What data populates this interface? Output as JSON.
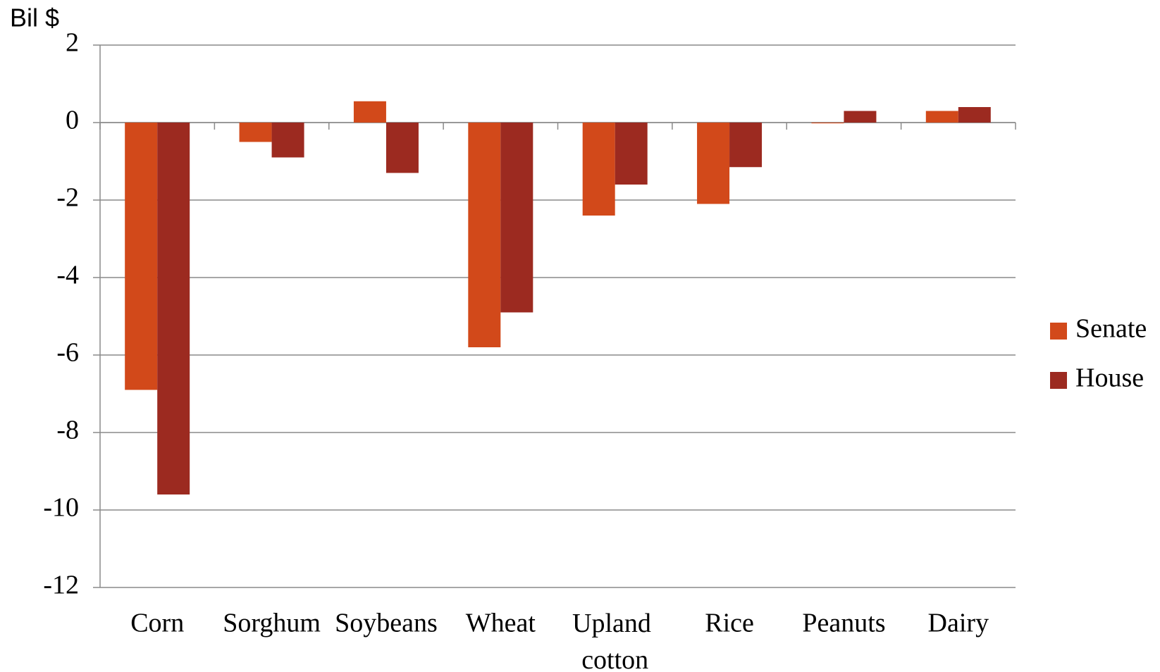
{
  "chart_data": {
    "type": "bar",
    "ylabel": "Bil $",
    "categories": [
      "Corn",
      "Sorghum",
      "Soybeans",
      "Wheat",
      "Upland cotton",
      "Rice",
      "Peanuts",
      "Dairy"
    ],
    "series": [
      {
        "name": "Senate",
        "color": "#d2491a",
        "values": [
          -6.9,
          -0.5,
          0.55,
          -5.8,
          -2.4,
          -2.1,
          -0.02,
          0.3
        ]
      },
      {
        "name": "House",
        "color": "#9c2a20",
        "values": [
          -9.6,
          -0.9,
          -1.3,
          -4.9,
          -1.6,
          -1.15,
          0.3,
          0.4
        ]
      }
    ],
    "ylim": [
      -12,
      2
    ],
    "yticks": [
      -12,
      -10,
      -8,
      -6,
      -4,
      -2,
      0,
      2
    ],
    "grid": true,
    "legend": "right"
  }
}
